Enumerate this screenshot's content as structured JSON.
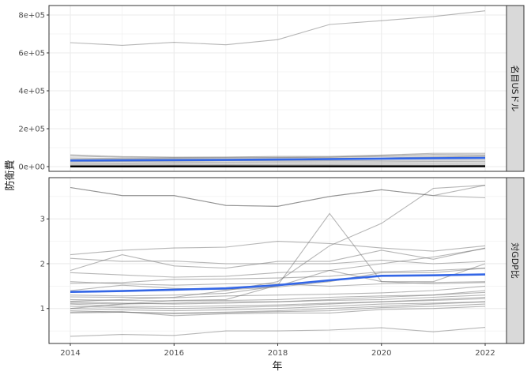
{
  "chart_data": {
    "type": "line",
    "xlabel": "年",
    "ylabel": "防衛費",
    "x": [
      2014,
      2015,
      2016,
      2017,
      2018,
      2019,
      2020,
      2021,
      2022
    ],
    "x_ticks": [
      "2014",
      "2016",
      "2018",
      "2020",
      "2022"
    ],
    "xlim": [
      2014,
      2022
    ],
    "grid": true,
    "colors": {
      "country_line": "#9e9e9e",
      "mean_line": "#3366e6",
      "strip_bg": "#d9d9d9",
      "panel_border": "#333333",
      "grid_major": "#ebebeb"
    },
    "panels": [
      {
        "strip": "名目USドル",
        "ylim": [
          -25000,
          850000
        ],
        "y_ticks": [
          0,
          200000,
          400000,
          600000,
          800000
        ],
        "y_tick_labels": [
          "0e+00",
          "2e+05",
          "4e+05",
          "6e+05",
          "8e+05"
        ],
        "series": [
          {
            "values": [
              654000,
              640000,
              656000,
              643000,
              670000,
              750000,
              770000,
              792000,
              822000
            ]
          },
          {
            "values": [
              62000,
              53000,
              50000,
              50000,
              54000,
              54000,
              61000,
              70000,
              70000
            ]
          },
          {
            "values": [
              56000,
              49000,
              48000,
              49000,
              49000,
              50000,
              58000,
              64000,
              62000
            ]
          },
          {
            "values": [
              46000,
              43000,
              44000,
              45000,
              47000,
              49000,
              53000,
              56000,
              57000
            ]
          },
          {
            "values": [
              40000,
              39000,
              40000,
              40000,
              42000,
              44000,
              46000,
              50000,
              54000
            ]
          },
          {
            "values": [
              34000,
              32000,
              33000,
              34000,
              36000,
              38000,
              40000,
              42000,
              44000
            ]
          },
          {
            "values": [
              28000,
              27000,
              28000,
              29000,
              30000,
              31000,
              32000,
              33000,
              35000
            ]
          },
          {
            "values": [
              22000,
              21000,
              22000,
              23000,
              24000,
              25000,
              26000,
              27000,
              28000
            ]
          },
          {
            "values": [
              15000,
              15000,
              16000,
              16000,
              17000,
              18000,
              19000,
              20000,
              21000
            ]
          },
          {
            "values": [
              9000,
              9000,
              9500,
              10000,
              10500,
              11000,
              11500,
              12000,
              13000
            ]
          },
          {
            "values": [
              5000,
              5000,
              5200,
              5400,
              5600,
              5800,
              6000,
              6300,
              6600
            ]
          },
          {
            "values": [
              2500,
              2500,
              2600,
              2700,
              2800,
              2900,
              3000,
              3200,
              3400
            ]
          },
          {
            "values": [
              1000,
              1000,
              1100,
              1100,
              1200,
              1200,
              1300,
              1400,
              1500
            ]
          }
        ],
        "mean": [
          32000,
          33000,
          34000,
          35000,
          37000,
          39000,
          42000,
          44000,
          46000
        ]
      },
      {
        "strip": "対GDP比",
        "ylim": [
          0.22,
          3.92
        ],
        "y_ticks": [
          1,
          2,
          3
        ],
        "y_tick_labels": [
          "1",
          "2",
          "3"
        ],
        "series": [
          {
            "values": [
              3.7,
              3.52,
              3.52,
              3.3,
              3.28,
              3.5,
              3.65,
              3.52,
              3.47
            ]
          },
          {
            "values": [
              3.7,
              3.52,
              3.52,
              3.3,
              3.28,
              3.5,
              3.65,
              3.52,
              3.75
            ]
          },
          {
            "values": [
              1.0,
              1.1,
              1.18,
              1.2,
              1.52,
              3.12,
              1.6,
              1.55,
              1.58
            ]
          },
          {
            "values": [
              1.16,
              1.2,
              1.25,
              1.4,
              1.6,
              2.4,
              2.9,
              3.68,
              3.75
            ]
          },
          {
            "values": [
              2.2,
              2.3,
              2.35,
              2.37,
              2.5,
              2.45,
              2.35,
              2.28,
              2.4
            ]
          },
          {
            "values": [
              2.12,
              2.05,
              2.06,
              2.0,
              2.0,
              2.0,
              2.08,
              2.0,
              2.05
            ]
          },
          {
            "values": [
              1.8,
              1.75,
              1.7,
              1.72,
              1.8,
              1.85,
              2.0,
              2.15,
              2.34
            ]
          },
          {
            "values": [
              1.6,
              1.55,
              1.52,
              1.55,
              1.55,
              1.5,
              1.55,
              1.58,
              1.6
            ]
          },
          {
            "values": [
              1.56,
              1.58,
              1.65,
              1.66,
              1.68,
              1.72,
              1.82,
              1.85,
              1.9
            ]
          },
          {
            "values": [
              1.4,
              1.52,
              1.45,
              1.42,
              1.48,
              1.6,
              1.8,
              1.8,
              1.9
            ]
          },
          {
            "values": [
              1.3,
              1.28,
              1.3,
              1.34,
              1.5,
              1.85,
              1.6,
              1.6,
              2.0
            ]
          },
          {
            "values": [
              1.26,
              1.25,
              1.24,
              1.28,
              1.3,
              1.32,
              1.35,
              1.4,
              1.5
            ]
          },
          {
            "values": [
              1.2,
              1.18,
              1.17,
              1.18,
              1.2,
              1.25,
              1.28,
              1.3,
              1.36
            ]
          },
          {
            "values": [
              1.15,
              1.12,
              1.1,
              1.12,
              1.15,
              1.18,
              1.2,
              1.25,
              1.3
            ]
          },
          {
            "values": [
              1.12,
              1.1,
              1.12,
              1.15,
              1.15,
              1.2,
              1.25,
              1.3,
              1.4
            ]
          },
          {
            "values": [
              1.1,
              1.05,
              1.04,
              1.06,
              1.08,
              1.12,
              1.15,
              1.2,
              1.25
            ]
          },
          {
            "values": [
              1.05,
              1.02,
              1.0,
              1.02,
              1.05,
              1.1,
              1.15,
              1.18,
              1.22
            ]
          },
          {
            "values": [
              1.0,
              0.97,
              0.95,
              0.97,
              1.0,
              1.05,
              1.1,
              1.12,
              1.15
            ]
          },
          {
            "values": [
              0.95,
              0.92,
              0.9,
              0.92,
              0.95,
              1.0,
              1.05,
              1.1,
              1.15
            ]
          },
          {
            "values": [
              0.9,
              0.92,
              0.88,
              0.9,
              0.93,
              0.95,
              1.02,
              1.05,
              1.1
            ]
          },
          {
            "values": [
              0.92,
              0.93,
              0.84,
              0.88,
              0.9,
              0.9,
              0.98,
              1.0,
              1.05
            ]
          },
          {
            "values": [
              1.85,
              2.2,
              1.95,
              1.9,
              2.05,
              2.05,
              2.3,
              2.1,
              2.35
            ]
          },
          {
            "values": [
              0.38,
              0.42,
              0.4,
              0.5,
              0.5,
              0.52,
              0.57,
              0.48,
              0.58
            ]
          }
        ],
        "mean": [
          1.37,
          1.39,
          1.42,
          1.45,
          1.52,
          1.63,
          1.73,
          1.74,
          1.76
        ]
      }
    ]
  }
}
